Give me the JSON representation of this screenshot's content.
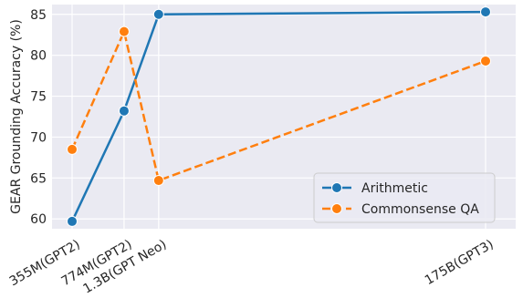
{
  "chart_data": {
    "type": "line",
    "categories": [
      "355M(GPT2)",
      "774M(GPT2)",
      "1.3B(GPT Neo)",
      "175B(GPT3)"
    ],
    "x": [
      0.355,
      0.774,
      1.3,
      175
    ],
    "xscale": "log",
    "ylabel": "GEAR Grounding Accuracy (%)",
    "xlabel": "",
    "ylim": [
      58.8,
      86.2
    ],
    "yticks": [
      60,
      65,
      70,
      75,
      80,
      85
    ],
    "grid": true,
    "legend_position": "lower-right",
    "series": [
      {
        "name": "Arithmetic",
        "values": [
          59.7,
          73.2,
          85.0,
          85.3
        ],
        "color": "#1f77b4",
        "linestyle": "solid",
        "marker": "circle"
      },
      {
        "name": "Commonsense QA",
        "values": [
          68.5,
          82.9,
          64.7,
          79.3
        ],
        "color": "#ff7f0e",
        "linestyle": "dashed",
        "marker": "circle"
      }
    ]
  }
}
